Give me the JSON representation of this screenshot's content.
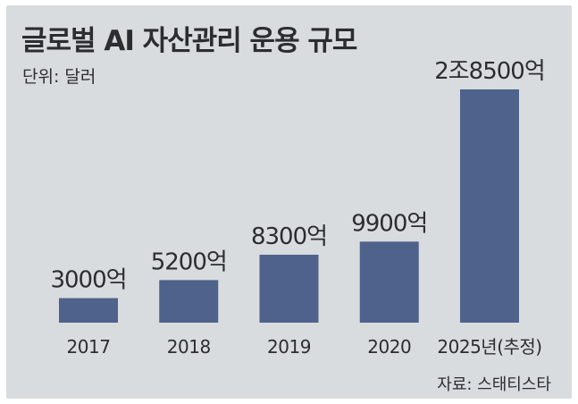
{
  "title": "글로벌 AI 자산관리 운용 규모",
  "unit_label": "단위: 달러",
  "source": "자료: 스태티스타",
  "colors": {
    "bar": "#4f628c",
    "background": "#d9dcde",
    "text": "#2b2d33"
  },
  "chart_data": {
    "type": "bar",
    "title": "글로벌 AI 자산관리 운용 규모",
    "ylabel": "",
    "xlabel": "",
    "unit": "달러",
    "categories": [
      "2017",
      "2018",
      "2019",
      "2020",
      "2025년(추정)"
    ],
    "values": [
      3000,
      5200,
      8300,
      9900,
      28500
    ],
    "value_unit": "억 달러",
    "data_labels": [
      "3000억",
      "5200억",
      "8300억",
      "9900억",
      "2조8500억"
    ],
    "ylim": [
      0,
      28500
    ],
    "grid": false,
    "legend": "none"
  }
}
